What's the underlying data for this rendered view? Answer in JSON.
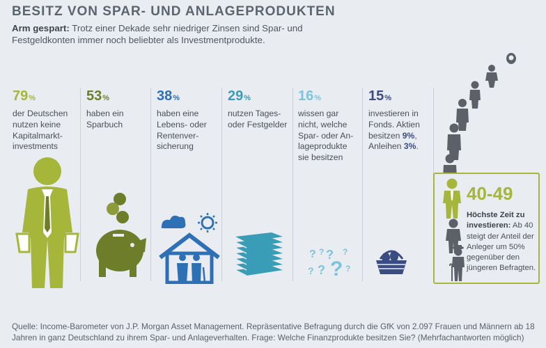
{
  "header": {
    "title": "BESITZ VON SPAR- UND ANLAGEPRODUKTEN",
    "subtitle_bold": "Arm gespart:",
    "subtitle_rest": " Trotz einer Dekade sehr niedriger Zinsen sind Spar- und Festgeldkonten immer noch beliebter als Investmentprodukte."
  },
  "colors": {
    "green": "#a5b63a",
    "olive": "#6e7d2a",
    "blue": "#2e70b5",
    "teal": "#3a9db7",
    "lightblue": "#7cc3dc",
    "navy": "#3b4c84",
    "gray": "#5c6068"
  },
  "chart_data": {
    "type": "table",
    "unit": "%",
    "items": [
      {
        "value": 79,
        "text": "der Deutschen nutzen keine Kapitalmarkt-investments",
        "icon": "man-empty-pockets-icon"
      },
      {
        "value": 53,
        "text": "haben ein Sparbuch",
        "icon": "piggy-bank-icon"
      },
      {
        "value": 38,
        "text": "haben eine Lebens- oder Renten-versicherung",
        "icon": "family-house-icon"
      },
      {
        "value": 29,
        "text": "nutzen Tages- oder Festgelder",
        "icon": "money-stack-icon"
      },
      {
        "value": 16,
        "text": "wissen gar nicht, welche Spar- oder An-lageprodukte sie besitzen",
        "icon": "question-marks-icon"
      },
      {
        "value": 15,
        "text": "investieren in Fonds. Aktien besitzen 9%, Anleihen 3%.",
        "icon": "egg-basket-icon"
      }
    ],
    "extra": [
      {
        "label": "Aktien",
        "value": 9
      },
      {
        "label": "Anleihen",
        "value": 3
      }
    ]
  },
  "columns": [
    {
      "pct": "79",
      "unit": "%",
      "lines": [
        "der Deutschen",
        "nutzen keine",
        "Kapitalmarkt-",
        "investments"
      ]
    },
    {
      "pct": "53",
      "unit": "%",
      "lines": [
        "haben ein",
        "Sparbuch"
      ]
    },
    {
      "pct": "38",
      "unit": "%",
      "lines": [
        "haben eine",
        "Lebens- oder",
        "Rentenver-",
        "sicherung"
      ]
    },
    {
      "pct": "29",
      "unit": "%",
      "lines": [
        "nutzen Tages-",
        "oder Festgelder"
      ]
    },
    {
      "pct": "16",
      "unit": "%",
      "lines": [
        "wissen gar",
        "nicht, welche",
        "Spar- oder An-",
        "lageprodukte",
        "sie besitzen"
      ]
    },
    {
      "pct": "15",
      "unit": "%",
      "line1": "investieren in",
      "line2": "Fonds. Aktien",
      "line3a": "besitzen ",
      "aktien": "9%",
      "line3b": ",",
      "line4a": "Anleihen ",
      "anleihen": "3%",
      "line4b": "."
    }
  ],
  "age": {
    "range": "40-49",
    "bold": "Höchste Zeit zu investieren:",
    "rest": " Ab 40 steigt der Anteil der Anleger um 50% gegenüber den jüngeren Befragten."
  },
  "source": "Quelle: Income-Barometer von J.P. Morgan Asset Management. Repräsentative Befragung durch die GfK von 2.097 Frauen und Männern ab 18 Jahren in ganz Deutschland zu ihrem Spar- und Anlageverhalten. Frage: Welche Finanzprodukte besitzen Sie? (Mehrfachantworten möglich)"
}
